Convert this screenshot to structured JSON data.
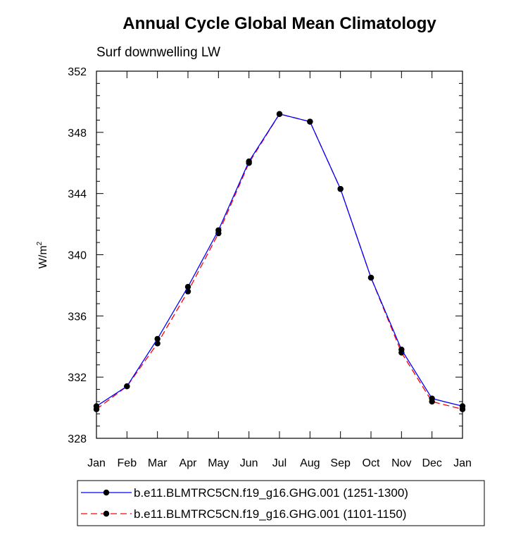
{
  "chart_data": {
    "type": "line",
    "title": "Annual Cycle Global Mean Climatology",
    "subtitle": "Surf downwelling LW",
    "ylabel": "W/m",
    "ylabel_sup": "2",
    "xlabel": "",
    "categories": [
      "Jan",
      "Feb",
      "Mar",
      "Apr",
      "May",
      "Jun",
      "Jul",
      "Aug",
      "Sep",
      "Oct",
      "Nov",
      "Dec",
      "Jan"
    ],
    "ylim": [
      328,
      352
    ],
    "yticks": [
      328,
      332,
      336,
      340,
      344,
      348,
      352
    ],
    "ytick_labels": [
      "328",
      "332",
      "336",
      "340",
      "344",
      "348",
      "352"
    ],
    "series": [
      {
        "name": "b.e11.BLMTRC5CN.f19_g16.GHG.001 (1251-1300)",
        "color": "#0000ff",
        "dash": "solid",
        "values": [
          330.1,
          331.4,
          334.5,
          337.9,
          341.6,
          346.1,
          349.2,
          348.7,
          344.3,
          338.5,
          333.8,
          330.6,
          330.1
        ]
      },
      {
        "name": "b.e11.BLMTRC5CN.f19_g16.GHG.001 (1101-1150)",
        "color": "#ff0000",
        "dash": "dashed",
        "values": [
          329.9,
          331.4,
          334.2,
          337.6,
          341.4,
          346.0,
          349.2,
          348.7,
          344.3,
          338.5,
          333.6,
          330.4,
          329.9
        ]
      }
    ],
    "legend_position": "bottom",
    "grid": false
  }
}
